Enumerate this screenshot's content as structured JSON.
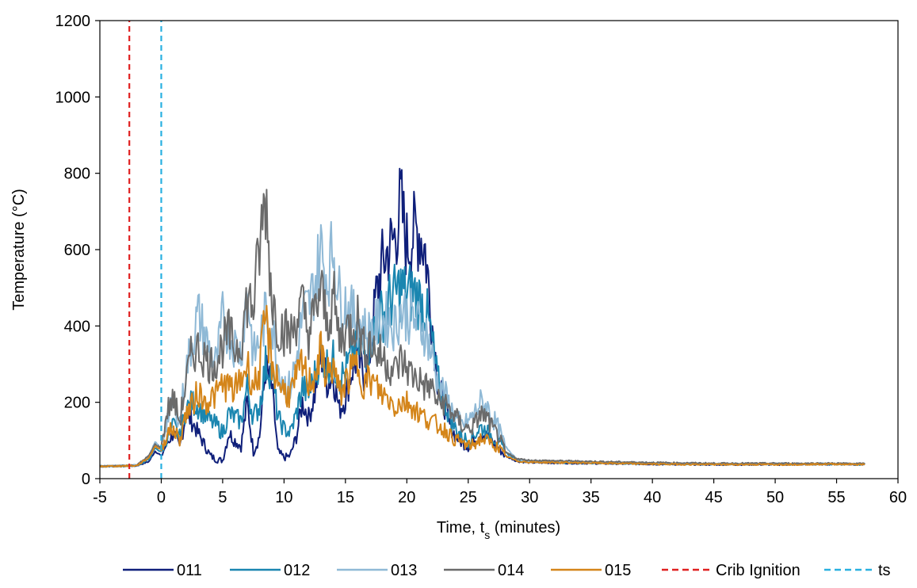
{
  "chart_data": {
    "type": "line",
    "xlabel": "Time, t",
    "xlabel_sub": "s",
    "xlabel_suffix": " (minutes)",
    "ylabel": "Temperature (°C)",
    "xlim": [
      -5,
      60
    ],
    "ylim": [
      0,
      1200
    ],
    "xticks": [
      -5,
      0,
      5,
      10,
      15,
      20,
      25,
      30,
      35,
      40,
      45,
      50,
      55,
      60
    ],
    "yticks": [
      0,
      200,
      400,
      600,
      800,
      1000,
      1200
    ],
    "grid": false,
    "legend_position": "bottom",
    "series": [
      {
        "name": "011",
        "color": "#0f1f7a",
        "style": "solid",
        "x": [
          -5,
          -2,
          -1,
          -0.5,
          0,
          0.5,
          1,
          1.5,
          2,
          2.5,
          3,
          3.5,
          4,
          4.5,
          5,
          5.5,
          6,
          6.5,
          7,
          7.5,
          8,
          8.5,
          9,
          9.5,
          10,
          10.5,
          11,
          11.5,
          12,
          12.5,
          13,
          13.5,
          14,
          14.5,
          15,
          15.5,
          16,
          16.5,
          17,
          17.5,
          18,
          18.5,
          19,
          19.5,
          20,
          20.5,
          21,
          21.5,
          22,
          22.5,
          23,
          23.5,
          24,
          24.5,
          25,
          25.5,
          26,
          26.5,
          27,
          27.5,
          28,
          29,
          30,
          35,
          40,
          45,
          50,
          55,
          57.3
        ],
        "values": [
          32,
          34,
          45,
          72,
          60,
          95,
          120,
          80,
          170,
          150,
          120,
          90,
          60,
          50,
          48,
          120,
          100,
          85,
          200,
          70,
          110,
          290,
          240,
          70,
          55,
          60,
          110,
          200,
          160,
          220,
          330,
          250,
          270,
          180,
          210,
          280,
          320,
          270,
          330,
          480,
          560,
          600,
          630,
          720,
          610,
          640,
          650,
          600,
          430,
          260,
          200,
          140,
          110,
          95,
          85,
          100,
          120,
          110,
          95,
          80,
          60,
          45,
          42,
          40,
          38,
          37,
          37,
          38,
          37
        ]
      },
      {
        "name": "012",
        "color": "#1a86b0",
        "style": "solid",
        "x": [
          -5,
          -2,
          -1,
          -0.5,
          0,
          0.5,
          1,
          1.5,
          2,
          2.5,
          3,
          3.5,
          4,
          4.5,
          5,
          5.5,
          6,
          6.5,
          7,
          7.5,
          8,
          8.5,
          9,
          9.5,
          10,
          10.5,
          11,
          11.5,
          12,
          12.5,
          13,
          13.5,
          14,
          14.5,
          15,
          15.5,
          16,
          16.5,
          17,
          17.5,
          18,
          18.5,
          19,
          19.5,
          20,
          20.5,
          21,
          21.5,
          22,
          22.5,
          23,
          23.5,
          24,
          24.5,
          25,
          25.5,
          26,
          26.5,
          27,
          27.5,
          28,
          29,
          30,
          35,
          40,
          45,
          50,
          55,
          57.3
        ],
        "values": [
          32,
          34,
          50,
          80,
          70,
          110,
          140,
          110,
          180,
          200,
          190,
          170,
          150,
          140,
          120,
          170,
          160,
          150,
          240,
          160,
          190,
          300,
          280,
          160,
          130,
          120,
          170,
          240,
          220,
          270,
          330,
          300,
          310,
          260,
          280,
          320,
          350,
          330,
          360,
          400,
          430,
          460,
          480,
          500,
          480,
          490,
          470,
          450,
          370,
          260,
          210,
          160,
          130,
          110,
          100,
          115,
          135,
          125,
          110,
          95,
          70,
          48,
          44,
          41,
          39,
          38,
          38,
          38,
          37
        ]
      },
      {
        "name": "013",
        "color": "#8fb9d6",
        "style": "solid",
        "x": [
          -5,
          -2,
          -1,
          -0.5,
          0,
          0.5,
          1,
          1.5,
          2,
          2.5,
          3,
          3.5,
          4,
          4.5,
          5,
          5.5,
          6,
          6.5,
          7,
          7.5,
          8,
          8.5,
          9,
          9.5,
          10,
          10.5,
          11,
          11.5,
          12,
          12.5,
          13,
          13.5,
          14,
          14.5,
          15,
          15.5,
          16,
          16.5,
          17,
          17.5,
          18,
          18.5,
          19,
          19.5,
          20,
          20.5,
          21,
          21.5,
          22,
          22.5,
          23,
          23.5,
          24,
          24.5,
          25,
          25.5,
          26,
          26.5,
          27,
          27.5,
          28,
          29,
          30,
          35,
          40,
          45,
          50,
          55,
          57.3
        ],
        "values": [
          32,
          35,
          60,
          95,
          80,
          160,
          200,
          150,
          280,
          360,
          430,
          380,
          330,
          300,
          420,
          380,
          350,
          330,
          500,
          320,
          360,
          430,
          400,
          300,
          250,
          240,
          310,
          430,
          450,
          510,
          600,
          520,
          610,
          480,
          460,
          430,
          420,
          390,
          380,
          400,
          410,
          420,
          400,
          440,
          430,
          420,
          400,
          390,
          330,
          250,
          230,
          190,
          160,
          140,
          150,
          170,
          200,
          190,
          160,
          130,
          85,
          50,
          46,
          43,
          41,
          39,
          39,
          39,
          38
        ]
      },
      {
        "name": "014",
        "color": "#6b6b6b",
        "style": "solid",
        "x": [
          -5,
          -2,
          -1,
          -0.5,
          0,
          0.5,
          1,
          1.5,
          2,
          2.5,
          3,
          3.5,
          4,
          4.5,
          5,
          5.5,
          6,
          6.5,
          7,
          7.5,
          8,
          8.5,
          9,
          9.5,
          10,
          10.5,
          11,
          11.5,
          12,
          12.5,
          13,
          13.5,
          14,
          14.5,
          15,
          15.5,
          16,
          16.5,
          17,
          17.5,
          18,
          18.5,
          19,
          19.5,
          20,
          20.5,
          21,
          21.5,
          22,
          22.5,
          23,
          23.5,
          24,
          24.5,
          25,
          25.5,
          26,
          26.5,
          27,
          27.5,
          28,
          29,
          30,
          35,
          40,
          45,
          50,
          55,
          57.3
        ],
        "values": [
          32,
          35,
          60,
          90,
          80,
          180,
          210,
          150,
          250,
          330,
          340,
          320,
          300,
          310,
          350,
          380,
          340,
          360,
          470,
          450,
          600,
          740,
          480,
          400,
          390,
          370,
          420,
          450,
          380,
          430,
          500,
          400,
          480,
          360,
          390,
          400,
          420,
          340,
          360,
          330,
          320,
          300,
          280,
          310,
          290,
          270,
          260,
          240,
          240,
          200,
          200,
          180,
          160,
          140,
          130,
          140,
          170,
          160,
          130,
          110,
          70,
          52,
          48,
          45,
          42,
          40,
          40,
          40,
          39
        ]
      },
      {
        "name": "015",
        "color": "#d4851a",
        "style": "solid",
        "x": [
          -5,
          -2,
          -1,
          -0.5,
          0,
          0.5,
          1,
          1.5,
          2,
          2.5,
          3,
          3.5,
          4,
          4.5,
          5,
          5.5,
          6,
          6.5,
          7,
          7.5,
          8,
          8.5,
          9,
          9.5,
          10,
          10.5,
          11,
          11.5,
          12,
          12.5,
          13,
          13.5,
          14,
          14.5,
          15,
          15.5,
          16,
          16.5,
          17,
          17.5,
          18,
          18.5,
          19,
          19.5,
          20,
          20.5,
          21,
          21.5,
          22,
          22.5,
          23,
          23.5,
          24,
          24.5,
          25,
          25.5,
          26,
          26.5,
          27,
          27.5,
          28,
          29,
          30,
          35,
          40,
          45,
          50,
          55,
          57.3
        ],
        "values": [
          32,
          34,
          55,
          85,
          75,
          120,
          130,
          100,
          170,
          190,
          230,
          200,
          210,
          220,
          250,
          240,
          230,
          260,
          300,
          240,
          280,
          420,
          300,
          260,
          230,
          220,
          260,
          300,
          250,
          270,
          330,
          270,
          300,
          220,
          250,
          280,
          300,
          250,
          260,
          240,
          220,
          210,
          190,
          200,
          200,
          190,
          170,
          160,
          150,
          140,
          130,
          115,
          100,
          95,
          85,
          90,
          105,
          100,
          90,
          80,
          60,
          46,
          43,
          41,
          38,
          37,
          37,
          38,
          37
        ]
      },
      {
        "name": "Crib Ignition",
        "color": "#e02020",
        "style": "dashed",
        "x": [
          -2.6,
          -2.6
        ],
        "values": [
          0,
          1200
        ]
      },
      {
        "name": "ts",
        "color": "#29b0e0",
        "style": "dashed",
        "x": [
          0,
          0
        ],
        "values": [
          0,
          1200
        ]
      }
    ]
  }
}
